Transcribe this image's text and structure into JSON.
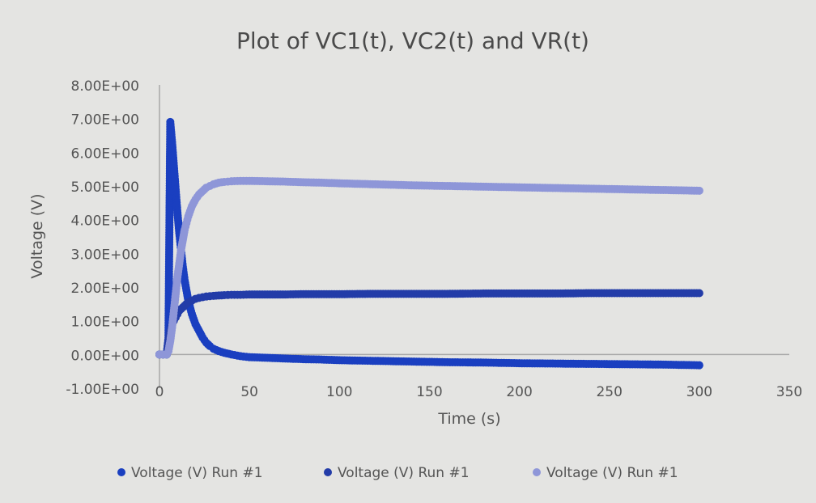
{
  "chart_data": {
    "type": "scatter",
    "title": "Plot of VC1(t), VC2(t) and VR(t)",
    "xlabel": "Time (s)",
    "ylabel": "Voltage (V)",
    "xlim": [
      0,
      350
    ],
    "ylim": [
      -1,
      8
    ],
    "x_ticks": [
      "0",
      "50",
      "100",
      "150",
      "200",
      "250",
      "300",
      "350"
    ],
    "y_ticks": [
      "-1.00E+00",
      "0.00E+00",
      "1.00E+00",
      "2.00E+00",
      "3.00E+00",
      "4.00E+00",
      "5.00E+00",
      "6.00E+00",
      "7.00E+00",
      "8.00E+00"
    ],
    "legend_position": "bottom",
    "grid": false,
    "series": [
      {
        "name": "Voltage (V) Run #1",
        "color": "#1a3fc0",
        "x": [
          0,
          2,
          4,
          5,
          6,
          7,
          8,
          9,
          10,
          11,
          12,
          13,
          14,
          15,
          16,
          18,
          20,
          22,
          24,
          26,
          28,
          30,
          33,
          36,
          40,
          45,
          50,
          60,
          70,
          80,
          90,
          100,
          120,
          140,
          160,
          180,
          200,
          220,
          240,
          260,
          280,
          300
        ],
        "y": [
          0,
          0,
          0,
          0.5,
          6.9,
          6.3,
          5.6,
          4.9,
          4.2,
          3.6,
          3.1,
          2.6,
          2.2,
          1.9,
          1.6,
          1.2,
          0.9,
          0.7,
          0.5,
          0.35,
          0.25,
          0.17,
          0.1,
          0.05,
          0.0,
          -0.05,
          -0.08,
          -0.1,
          -0.12,
          -0.14,
          -0.15,
          -0.17,
          -0.19,
          -0.21,
          -0.23,
          -0.24,
          -0.26,
          -0.27,
          -0.28,
          -0.29,
          -0.3,
          -0.32
        ]
      },
      {
        "name": "Voltage (V) Run #1",
        "color": "#233ca8",
        "x": [
          0,
          2,
          4,
          5,
          6,
          7,
          8,
          9,
          10,
          11,
          12,
          13,
          14,
          15,
          16,
          18,
          20,
          22,
          24,
          26,
          28,
          30,
          33,
          36,
          40,
          45,
          50,
          60,
          70,
          80,
          90,
          100,
          120,
          140,
          160,
          180,
          200,
          220,
          240,
          260,
          280,
          300
        ],
        "y": [
          0,
          0,
          0,
          0.4,
          0.7,
          0.9,
          1.0,
          1.1,
          1.2,
          1.3,
          1.35,
          1.4,
          1.45,
          1.5,
          1.55,
          1.6,
          1.65,
          1.68,
          1.7,
          1.72,
          1.73,
          1.74,
          1.75,
          1.76,
          1.77,
          1.77,
          1.78,
          1.78,
          1.78,
          1.79,
          1.79,
          1.79,
          1.8,
          1.8,
          1.8,
          1.81,
          1.81,
          1.81,
          1.82,
          1.82,
          1.82,
          1.82
        ]
      },
      {
        "name": "Voltage (V) Run #1",
        "color": "#8e96d8",
        "x": [
          0,
          2,
          4,
          5,
          6,
          7,
          8,
          9,
          10,
          11,
          12,
          13,
          14,
          15,
          16,
          18,
          20,
          22,
          24,
          26,
          28,
          30,
          33,
          36,
          40,
          45,
          50,
          60,
          70,
          80,
          90,
          100,
          120,
          140,
          160,
          180,
          200,
          220,
          240,
          260,
          280,
          300
        ],
        "y": [
          0,
          0,
          0,
          0.1,
          0.4,
          0.8,
          1.3,
          1.8,
          2.3,
          2.7,
          3.1,
          3.4,
          3.7,
          3.9,
          4.1,
          4.4,
          4.6,
          4.75,
          4.85,
          4.95,
          5.0,
          5.05,
          5.1,
          5.12,
          5.14,
          5.15,
          5.15,
          5.14,
          5.13,
          5.11,
          5.1,
          5.08,
          5.05,
          5.02,
          5.0,
          4.98,
          4.96,
          4.94,
          4.92,
          4.9,
          4.88,
          4.86
        ]
      }
    ]
  }
}
